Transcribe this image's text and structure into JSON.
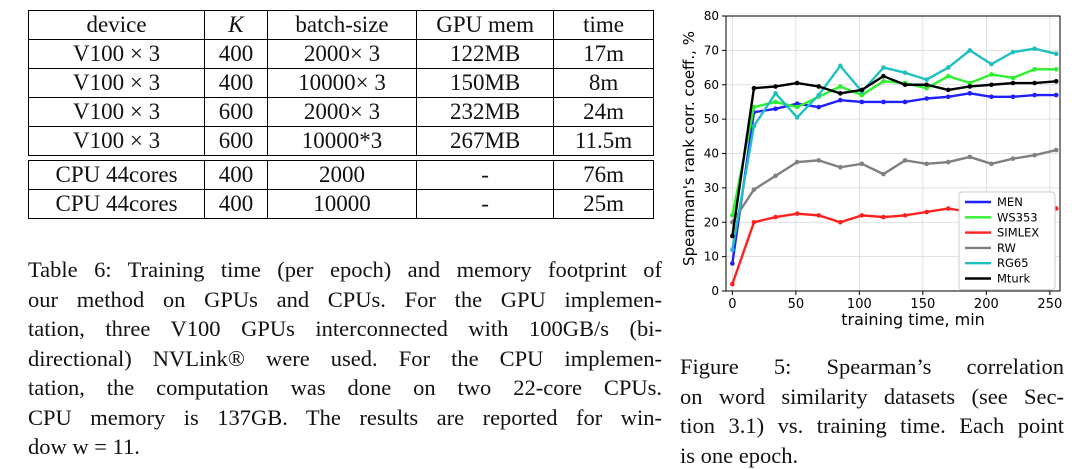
{
  "table": {
    "headers": [
      "device",
      "K",
      "batch-size",
      "GPU mem",
      "time"
    ],
    "gpu_rows": [
      [
        "V100 × 3",
        "400",
        "2000× 3",
        "122MB",
        "17m"
      ],
      [
        "V100 × 3",
        "400",
        "10000× 3",
        "150MB",
        "8m"
      ],
      [
        "V100 × 3",
        "600",
        "2000× 3",
        "232MB",
        "24m"
      ],
      [
        "V100 × 3",
        "600",
        "10000*3",
        "267MB",
        "11.5m"
      ]
    ],
    "cpu_rows": [
      [
        "CPU 44cores",
        "400",
        "2000",
        "-",
        "76m"
      ],
      [
        "CPU 44cores",
        "400",
        "10000",
        "-",
        "25m"
      ]
    ]
  },
  "caption6": {
    "lines": [
      "Table 6: Training time (per epoch) and memory footprint of",
      "our method on GPUs and CPUs.  For the GPU implemen-",
      "tation, three V100 GPUs interconnected with 100GB/s (bi-",
      "directional) NVLink® were used. For the CPU implemen-",
      "tation, the computation was done on two 22-core CPUs.",
      "CPU memory is 137GB. The results are reported for win-",
      "dow w = 11."
    ]
  },
  "caption5": {
    "lines": [
      "Figure   5:     Spearman’s correlation",
      "on word similarity datasets (see Sec-",
      "tion 3.1) vs.  training time.  Each point",
      "is one epoch."
    ]
  },
  "chart_data": {
    "type": "line",
    "title": "",
    "xlabel": "training time, min",
    "ylabel": "Spearman's rank corr. coeff., %",
    "xlim": [
      -5,
      258
    ],
    "ylim": [
      0,
      80
    ],
    "xticks": [
      0,
      50,
      100,
      150,
      200,
      250
    ],
    "yticks": [
      0,
      10,
      20,
      30,
      40,
      50,
      60,
      70,
      80
    ],
    "grid": true,
    "legend_position": "bottom-right",
    "series": [
      {
        "name": "MEN",
        "color": "#1f1fff",
        "x": [
          0,
          17,
          34,
          51,
          68,
          85,
          102,
          119,
          136,
          153,
          170,
          187,
          204,
          221,
          238,
          255
        ],
        "y": [
          8,
          52,
          53,
          54.5,
          53.5,
          55.5,
          55,
          55,
          55,
          56,
          56.5,
          57.5,
          56.5,
          56.5,
          57,
          57
        ]
      },
      {
        "name": "WS353",
        "color": "#2ef02e",
        "x": [
          0,
          17,
          34,
          51,
          68,
          85,
          102,
          119,
          136,
          153,
          170,
          187,
          204,
          221,
          238,
          255
        ],
        "y": [
          22,
          53.5,
          55,
          53.5,
          56.5,
          59.5,
          57,
          61,
          60.5,
          59,
          62.5,
          60.5,
          63,
          62,
          64.5,
          64.5
        ]
      },
      {
        "name": "SIMLEX",
        "color": "#ff2020",
        "x": [
          0,
          17,
          34,
          51,
          68,
          85,
          102,
          119,
          136,
          153,
          170,
          187,
          204,
          221,
          238,
          255
        ],
        "y": [
          2,
          20,
          21.5,
          22.5,
          22,
          20,
          22,
          21.5,
          22,
          23,
          24,
          23,
          24,
          23.5,
          24,
          24
        ]
      },
      {
        "name": "RW",
        "color": "#808080",
        "x": [
          0,
          17,
          34,
          51,
          68,
          85,
          102,
          119,
          136,
          153,
          170,
          187,
          204,
          221,
          238,
          255
        ],
        "y": [
          20,
          29.5,
          33.5,
          37.5,
          38,
          36,
          37,
          34,
          38,
          37,
          37.5,
          39,
          37,
          38.5,
          39.5,
          41
        ]
      },
      {
        "name": "RG65",
        "color": "#20c0c0",
        "x": [
          0,
          17,
          34,
          51,
          68,
          85,
          102,
          119,
          136,
          153,
          170,
          187,
          204,
          221,
          238,
          255
        ],
        "y": [
          12,
          48,
          57.5,
          50.5,
          57,
          65.5,
          58,
          65,
          63.5,
          61.5,
          65,
          70,
          66,
          69.5,
          70.5,
          69
        ]
      },
      {
        "name": "Mturk",
        "color": "#000000",
        "x": [
          0,
          17,
          34,
          51,
          68,
          85,
          102,
          119,
          136,
          153,
          170,
          187,
          204,
          221,
          238,
          255
        ],
        "y": [
          16,
          59,
          59.5,
          60.5,
          59.5,
          57.5,
          58.5,
          62.5,
          60,
          60,
          58.5,
          59.5,
          60,
          60.5,
          60.5,
          61
        ]
      }
    ]
  }
}
